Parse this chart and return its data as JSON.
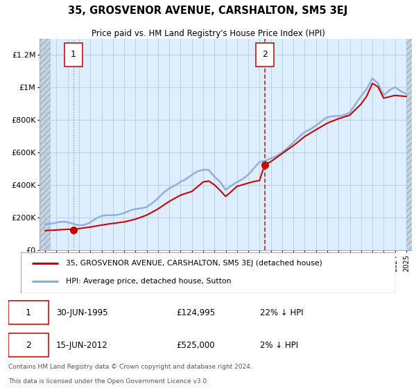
{
  "title": "35, GROSVENOR AVENUE, CARSHALTON, SM5 3EJ",
  "subtitle": "Price paid vs. HM Land Registry's House Price Index (HPI)",
  "legend_line1": "35, GROSVENOR AVENUE, CARSHALTON, SM5 3EJ (detached house)",
  "legend_line2": "HPI: Average price, detached house, Sutton",
  "annotation1_date": "30-JUN-1995",
  "annotation1_price": "£124,995",
  "annotation1_hpi": "22% ↓ HPI",
  "annotation2_date": "15-JUN-2012",
  "annotation2_price": "£525,000",
  "annotation2_hpi": "2% ↓ HPI",
  "footnote1": "Contains HM Land Registry data © Crown copyright and database right 2024.",
  "footnote2": "This data is licensed under the Open Government Licence v3.0.",
  "sale1_x": 1995.5,
  "sale1_y": 124995,
  "sale2_x": 2012.46,
  "sale2_y": 525000,
  "ylim": [
    0,
    1300000
  ],
  "xlim": [
    1992.5,
    2025.5
  ],
  "bg_color": "#ddeeff",
  "hatch_color": "#c5d5e5",
  "red_line_color": "#cc0000",
  "blue_line_color": "#88aadd",
  "sale_dot_color": "#cc0000",
  "sale1_vline_color": "#888888",
  "sale2_vline_color": "#cc2222",
  "grid_color": "#b0c4d8",
  "box_edge_color": "#cc2222"
}
